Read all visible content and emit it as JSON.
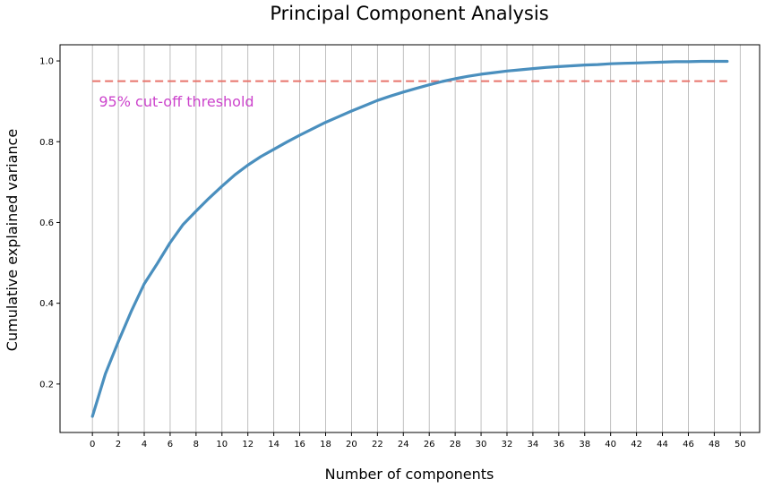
{
  "chart_data": {
    "type": "line",
    "title": "Principal Component Analysis",
    "xlabel": "Number of components",
    "ylabel": "Cumulative explained variance",
    "xlim": [
      -2.5,
      51.5
    ],
    "ylim": [
      0.08,
      1.04
    ],
    "x_ticks": [
      "0",
      "2",
      "4",
      "6",
      "8",
      "10",
      "12",
      "14",
      "16",
      "18",
      "20",
      "22",
      "24",
      "26",
      "28",
      "30",
      "32",
      "34",
      "36",
      "38",
      "40",
      "42",
      "44",
      "46",
      "48",
      "50"
    ],
    "y_ticks": [
      "0.2",
      "0.4",
      "0.6",
      "0.8",
      "1.0"
    ],
    "grid": "vertical",
    "line_color": "#4a8fbe",
    "threshold_color": "#e8736b",
    "annotation_color": "#cc44cc",
    "series": [
      {
        "x": [
          0,
          1,
          2,
          3,
          4,
          5,
          6,
          7,
          8,
          9,
          10,
          11,
          12,
          13,
          14,
          15,
          16,
          17,
          18,
          19,
          20,
          21,
          22,
          23,
          24,
          25,
          26,
          27,
          28,
          29,
          30,
          31,
          32,
          33,
          34,
          35,
          36,
          37,
          38,
          39,
          40,
          41,
          42,
          43,
          44,
          45,
          46,
          47,
          48,
          49
        ],
        "values": [
          0.12,
          0.225,
          0.305,
          0.38,
          0.448,
          0.498,
          0.55,
          0.595,
          0.628,
          0.66,
          0.69,
          0.718,
          0.742,
          0.763,
          0.781,
          0.799,
          0.816,
          0.832,
          0.848,
          0.862,
          0.876,
          0.889,
          0.902,
          0.913,
          0.923,
          0.932,
          0.941,
          0.949,
          0.956,
          0.962,
          0.967,
          0.971,
          0.975,
          0.978,
          0.981,
          0.984,
          0.986,
          0.988,
          0.99,
          0.991,
          0.993,
          0.994,
          0.995,
          0.996,
          0.997,
          0.998,
          0.998,
          0.999,
          0.999,
          0.999
        ]
      }
    ],
    "threshold": {
      "y": 0.95,
      "x_range": [
        0,
        49
      ]
    },
    "annotation": {
      "text": "95% cut-off threshold",
      "x": 0.5,
      "y": 0.9
    }
  }
}
